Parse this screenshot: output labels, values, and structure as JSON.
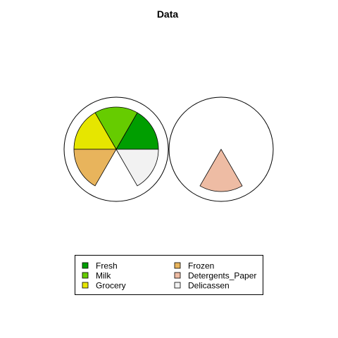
{
  "chart_data": {
    "type": "pie",
    "title": "Data",
    "variables": [
      "Fresh",
      "Milk",
      "Grocery",
      "Frozen",
      "Detergents_Paper",
      "Delicassen"
    ],
    "colors": {
      "Fresh": "#009E00",
      "Milk": "#66CC00",
      "Grocery": "#E6E600",
      "Frozen": "#E8B45C",
      "Detergents_Paper": "#EEBCA4",
      "Delicassen": "#F2F2F2"
    },
    "stars": [
      {
        "values": [
          1.0,
          1.0,
          1.0,
          1.0,
          0,
          1.0
        ]
      },
      {
        "values": [
          0,
          0,
          0,
          0,
          1.0,
          0
        ]
      }
    ],
    "legend": {
      "position": "bottom",
      "columns": 2
    }
  }
}
